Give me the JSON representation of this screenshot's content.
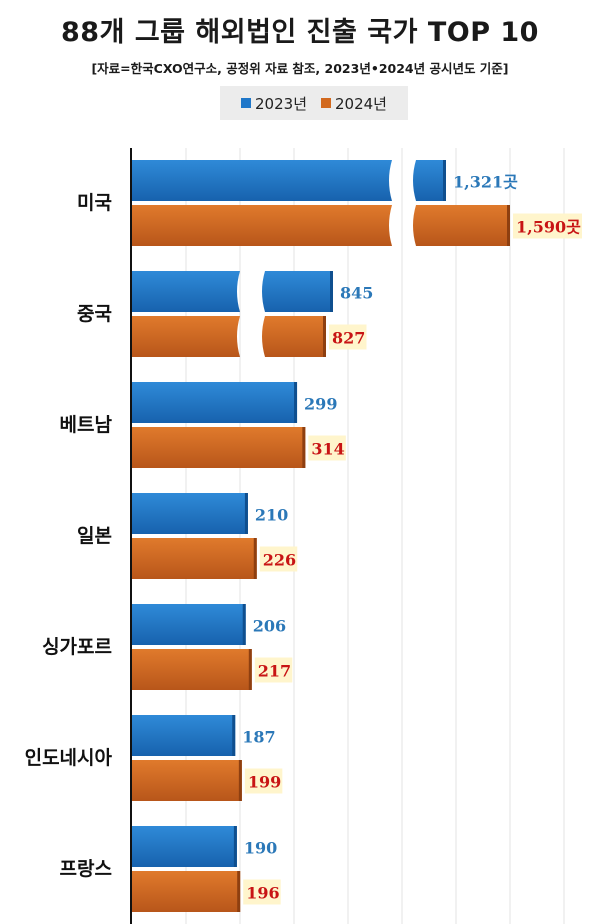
{
  "chart_data": {
    "type": "bar",
    "orientation": "horizontal",
    "title": "88개 그룹 해외법인 진출 국가 TOP 10",
    "subtitle": "[자료=한국CXO연구소, 공정위 자료 참조, 2023년•2024년 공시년도 기준]",
    "categories": [
      "미국",
      "중국",
      "베트남",
      "일본",
      "싱가포르",
      "인도네시아",
      "프랑스"
    ],
    "series": [
      {
        "name": "2023년",
        "values": [
          1321,
          845,
          299,
          210,
          206,
          187,
          190
        ],
        "labels": [
          "1,321곳",
          "845",
          "299",
          "210",
          "206",
          "187",
          "190"
        ]
      },
      {
        "name": "2024년",
        "values": [
          1590,
          827,
          314,
          226,
          217,
          199,
          196
        ],
        "labels": [
          "1,590곳",
          "827",
          "314",
          "226",
          "217",
          "199",
          "196"
        ]
      }
    ],
    "axis_break": true,
    "grid": true,
    "legend_position": "top",
    "colors": {
      "2023년": "#1f77c9",
      "2024년": "#d2691e",
      "label_2023": "#2b78b8",
      "label_2024": "#c81414",
      "label_2024_bg": "#fff5cc"
    }
  }
}
